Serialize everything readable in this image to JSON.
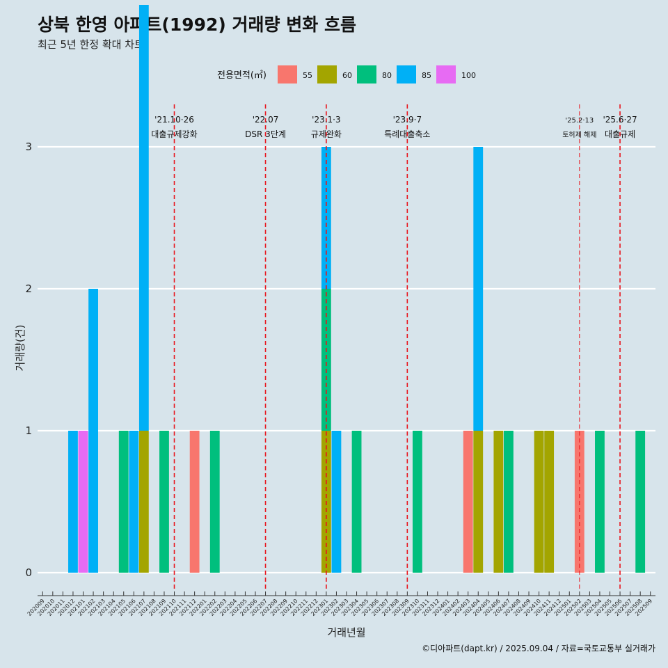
{
  "chart_data": {
    "type": "bar",
    "title": "상북 한영 아파트(1992) 거래량 변화 흐름",
    "subtitle": "최근 5년 한정 확대 차트",
    "xlabel": "거래년월",
    "ylabel": "거래량(건)",
    "ylim": [
      0,
      3
    ],
    "yticks": [
      "0",
      "1",
      "2",
      "3"
    ],
    "legend": {
      "title": "전용면적(㎡)",
      "position": "top"
    },
    "series_colors": {
      "55": "#f8766d",
      "60": "#a3a500",
      "80": "#00bf7d",
      "85": "#00b0f6",
      "100": "#e76bf3"
    },
    "categories": [
      "202009",
      "202010",
      "202011",
      "202012",
      "202101",
      "202102",
      "202103",
      "202104",
      "202105",
      "202106",
      "202107",
      "202108",
      "202109",
      "202110",
      "202111",
      "202112",
      "202201",
      "202202",
      "202203",
      "202204",
      "202205",
      "202206",
      "202207",
      "202208",
      "202209",
      "202210",
      "202211",
      "202212",
      "202301",
      "202302",
      "202303",
      "202304",
      "202305",
      "202306",
      "202307",
      "202308",
      "202309",
      "202310",
      "202311",
      "202312",
      "202401",
      "202402",
      "202403",
      "202404",
      "202405",
      "202406",
      "202407",
      "202408",
      "202409",
      "202410",
      "202411",
      "202412",
      "202501",
      "202502",
      "202503",
      "202504",
      "202505",
      "202506",
      "202507",
      "202508",
      "202509"
    ],
    "series": [
      {
        "name": "55",
        "values": [
          {
            "month": "202112",
            "value": 1
          },
          {
            "month": "202403",
            "value": 1
          },
          {
            "month": "202502",
            "value": 1
          }
        ]
      },
      {
        "name": "60",
        "values": [
          {
            "month": "202107",
            "value": 1
          },
          {
            "month": "202301",
            "value": 1
          },
          {
            "month": "202404",
            "value": 1
          },
          {
            "month": "202406",
            "value": 1
          },
          {
            "month": "202410",
            "value": 1
          },
          {
            "month": "202411",
            "value": 1
          }
        ]
      },
      {
        "name": "80",
        "values": [
          {
            "month": "202105",
            "value": 1
          },
          {
            "month": "202109",
            "value": 1
          },
          {
            "month": "202202",
            "value": 1
          },
          {
            "month": "202301",
            "value": 1
          },
          {
            "month": "202304",
            "value": 1
          },
          {
            "month": "202310",
            "value": 1
          },
          {
            "month": "202407",
            "value": 1
          },
          {
            "month": "202504",
            "value": 1
          },
          {
            "month": "202508",
            "value": 1
          }
        ]
      },
      {
        "name": "85",
        "values": [
          {
            "month": "202012",
            "value": 1
          },
          {
            "month": "202102",
            "value": 2
          },
          {
            "month": "202106",
            "value": 1
          },
          {
            "month": "202107",
            "value": 3
          },
          {
            "month": "202301",
            "value": 1
          },
          {
            "month": "202302",
            "value": 1
          },
          {
            "month": "202404",
            "value": 2
          }
        ]
      },
      {
        "name": "100",
        "values": [
          {
            "month": "202101",
            "value": 1
          }
        ]
      }
    ],
    "annotations": [
      {
        "month": "202110",
        "date": "'21.10·26",
        "label": "대출규제강화"
      },
      {
        "month": "202207",
        "date": "'22.07",
        "label": "DSR 3단계"
      },
      {
        "month": "202301",
        "date": "'23.1·3",
        "label": "규제완화"
      },
      {
        "month": "202309",
        "date": "'23.9·7",
        "label": "특례대출축소"
      },
      {
        "month": "202502",
        "date": "'25.2·13",
        "label": "토허제 해제"
      },
      {
        "month": "202506",
        "date": "'25.6·27",
        "label": "대출규제"
      }
    ],
    "caption": "©디아파트(dapt.kr) / 2025.09.04 / 자료=국토교통부 실거래가"
  }
}
